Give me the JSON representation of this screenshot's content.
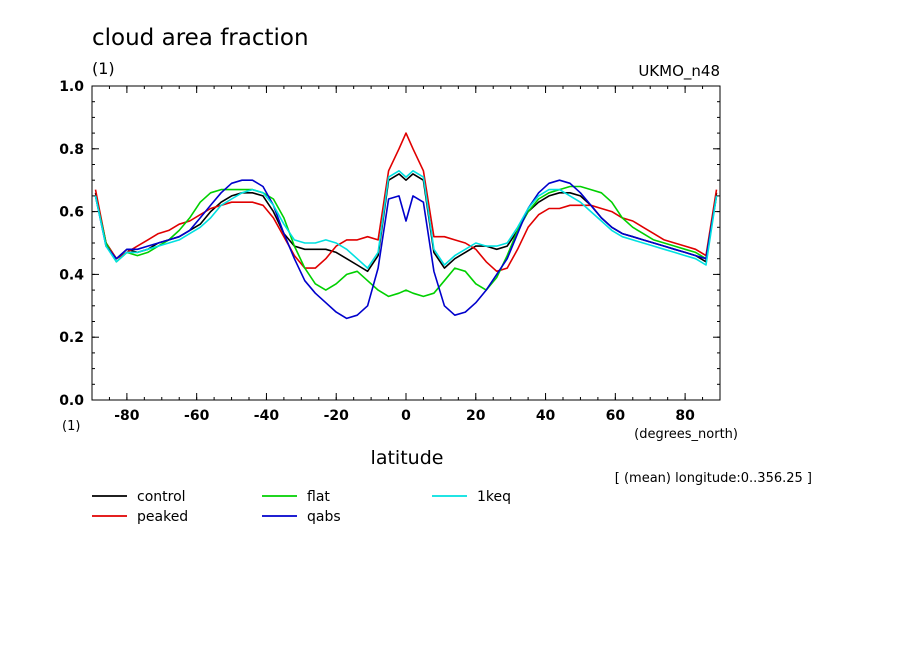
{
  "chart_data": {
    "type": "line",
    "title": "cloud area fraction",
    "subtitle": "UKMO_n48",
    "ylabel": "(1)",
    "xlabel": "latitude",
    "xunit": "(degrees_north)",
    "yunit_bottom": "(1)",
    "footnote": "[ (mean) longitude:0..356.25 ]",
    "xlim": [
      -90,
      90
    ],
    "ylim": [
      0,
      1
    ],
    "xticks": [
      -80,
      -60,
      -40,
      -20,
      0,
      20,
      40,
      60,
      80
    ],
    "yticks": [
      0.0,
      0.2,
      0.4,
      0.6,
      0.8,
      1.0
    ],
    "xtick_labels": [
      "-80",
      "-60",
      "-40",
      "-20",
      "0",
      "20",
      "40",
      "60",
      "80"
    ],
    "ytick_labels": [
      "0.0",
      "0.2",
      "0.4",
      "0.6",
      "0.8",
      "1.0"
    ],
    "grid": false,
    "legend_position": "bottom-left",
    "x": [
      -89,
      -86,
      -83,
      -80,
      -77,
      -74,
      -71,
      -68,
      -65,
      -62,
      -59,
      -56,
      -53,
      -50,
      -47,
      -44,
      -41,
      -38,
      -35,
      -32,
      -29,
      -26,
      -23,
      -20,
      -17,
      -14,
      -11,
      -8,
      -5,
      -2,
      0,
      2,
      5,
      8,
      11,
      14,
      17,
      20,
      23,
      26,
      29,
      32,
      35,
      38,
      41,
      44,
      47,
      50,
      53,
      56,
      59,
      62,
      65,
      68,
      71,
      74,
      77,
      80,
      83,
      86,
      89
    ],
    "series": [
      {
        "name": "control",
        "color": "#000000",
        "values": [
          0.66,
          0.5,
          0.45,
          0.48,
          0.47,
          0.48,
          0.5,
          0.51,
          0.52,
          0.54,
          0.56,
          0.6,
          0.63,
          0.65,
          0.66,
          0.66,
          0.65,
          0.6,
          0.53,
          0.49,
          0.48,
          0.48,
          0.48,
          0.47,
          0.45,
          0.43,
          0.41,
          0.46,
          0.7,
          0.72,
          0.7,
          0.72,
          0.7,
          0.47,
          0.42,
          0.45,
          0.47,
          0.49,
          0.49,
          0.48,
          0.49,
          0.54,
          0.6,
          0.63,
          0.65,
          0.66,
          0.66,
          0.65,
          0.62,
          0.58,
          0.55,
          0.53,
          0.52,
          0.51,
          0.5,
          0.49,
          0.48,
          0.47,
          0.46,
          0.44,
          0.66
        ]
      },
      {
        "name": "peaked",
        "color": "#e00000",
        "values": [
          0.67,
          0.5,
          0.45,
          0.47,
          0.49,
          0.51,
          0.53,
          0.54,
          0.56,
          0.57,
          0.59,
          0.61,
          0.62,
          0.63,
          0.63,
          0.63,
          0.62,
          0.58,
          0.52,
          0.46,
          0.42,
          0.42,
          0.45,
          0.49,
          0.51,
          0.51,
          0.52,
          0.51,
          0.73,
          0.8,
          0.85,
          0.8,
          0.73,
          0.52,
          0.52,
          0.51,
          0.5,
          0.48,
          0.44,
          0.41,
          0.42,
          0.48,
          0.55,
          0.59,
          0.61,
          0.61,
          0.62,
          0.62,
          0.62,
          0.61,
          0.6,
          0.58,
          0.57,
          0.55,
          0.53,
          0.51,
          0.5,
          0.49,
          0.48,
          0.46,
          0.67
        ]
      },
      {
        "name": "flat",
        "color": "#00d000",
        "values": [
          0.65,
          0.5,
          0.44,
          0.47,
          0.46,
          0.47,
          0.49,
          0.51,
          0.54,
          0.58,
          0.63,
          0.66,
          0.67,
          0.67,
          0.67,
          0.67,
          0.66,
          0.64,
          0.58,
          0.49,
          0.42,
          0.37,
          0.35,
          0.37,
          0.4,
          0.41,
          0.38,
          0.35,
          0.33,
          0.34,
          0.35,
          0.34,
          0.33,
          0.34,
          0.38,
          0.42,
          0.41,
          0.37,
          0.35,
          0.39,
          0.46,
          0.54,
          0.6,
          0.64,
          0.66,
          0.67,
          0.68,
          0.68,
          0.67,
          0.66,
          0.63,
          0.58,
          0.55,
          0.53,
          0.51,
          0.5,
          0.49,
          0.48,
          0.47,
          0.45,
          0.65
        ]
      },
      {
        "name": "qabs",
        "color": "#0000cc",
        "values": [
          0.65,
          0.49,
          0.45,
          0.48,
          0.48,
          0.49,
          0.5,
          0.51,
          0.52,
          0.54,
          0.58,
          0.62,
          0.66,
          0.69,
          0.7,
          0.7,
          0.68,
          0.62,
          0.53,
          0.45,
          0.38,
          0.34,
          0.31,
          0.28,
          0.26,
          0.27,
          0.3,
          0.42,
          0.64,
          0.65,
          0.57,
          0.65,
          0.63,
          0.41,
          0.3,
          0.27,
          0.28,
          0.31,
          0.35,
          0.4,
          0.45,
          0.53,
          0.61,
          0.66,
          0.69,
          0.7,
          0.69,
          0.66,
          0.62,
          0.58,
          0.55,
          0.53,
          0.52,
          0.51,
          0.5,
          0.49,
          0.48,
          0.47,
          0.46,
          0.45,
          0.65
        ]
      },
      {
        "name": "1keq",
        "color": "#00e0e0",
        "values": [
          0.65,
          0.49,
          0.44,
          0.47,
          0.47,
          0.48,
          0.49,
          0.5,
          0.51,
          0.53,
          0.55,
          0.58,
          0.62,
          0.64,
          0.66,
          0.67,
          0.66,
          0.62,
          0.56,
          0.51,
          0.5,
          0.5,
          0.51,
          0.5,
          0.48,
          0.45,
          0.42,
          0.47,
          0.71,
          0.73,
          0.71,
          0.73,
          0.71,
          0.48,
          0.43,
          0.46,
          0.48,
          0.5,
          0.49,
          0.49,
          0.5,
          0.55,
          0.61,
          0.65,
          0.67,
          0.67,
          0.65,
          0.63,
          0.6,
          0.57,
          0.54,
          0.52,
          0.51,
          0.5,
          0.49,
          0.48,
          0.47,
          0.46,
          0.45,
          0.43,
          0.65
        ]
      }
    ]
  }
}
